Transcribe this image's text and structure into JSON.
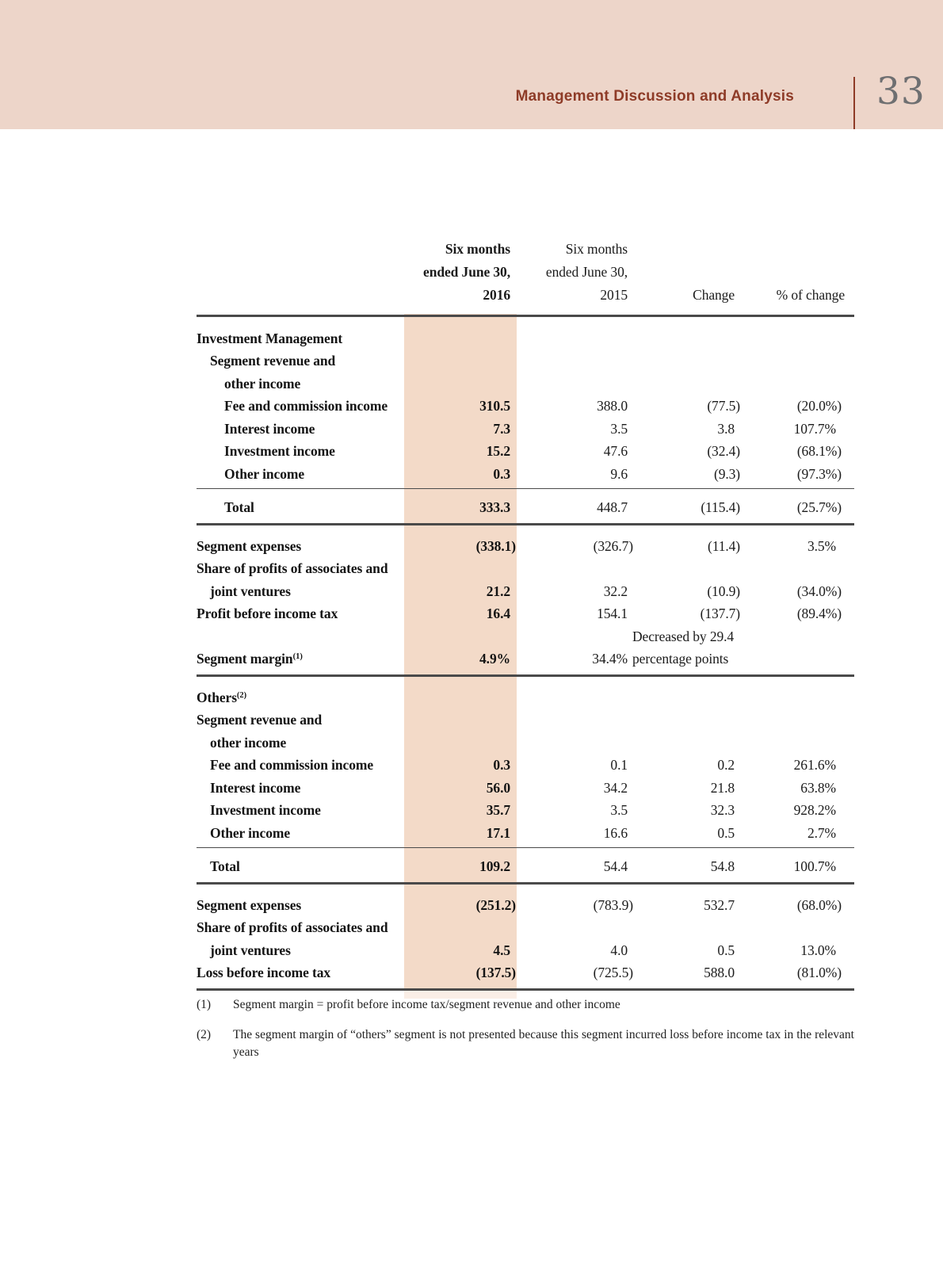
{
  "colors": {
    "band": "#edd5c9",
    "column": "#f3dac8",
    "accent": "#8e3b27",
    "page_number": "#6e6f71",
    "rule": "#4a4a4a"
  },
  "header": {
    "title": "Management Discussion and Analysis",
    "page_number": "33"
  },
  "table": {
    "columns": {
      "c2016_lines": [
        "Six months",
        "ended June 30,",
        "2016"
      ],
      "c2015_lines": [
        "Six months",
        "ended June 30,",
        "2015"
      ],
      "change_label": "Change",
      "pct_label": "% of change"
    },
    "rows": [
      {
        "kind": "label",
        "label": "Investment Management",
        "indent": 0
      },
      {
        "kind": "label",
        "label": "Segment revenue and",
        "indent": 1
      },
      {
        "kind": "label",
        "label": "other income",
        "indent": 2
      },
      {
        "kind": "data",
        "label": "Fee and commission income",
        "indent": 2,
        "v2016": "310.5",
        "v2015": "388.0",
        "change": "(77.5)",
        "pct": "(20.0%)"
      },
      {
        "kind": "data",
        "label": "Interest income",
        "indent": 2,
        "v2016": "7.3",
        "v2015": "3.5",
        "change": "3.8",
        "pct": "107.7%"
      },
      {
        "kind": "data",
        "label": "Investment income",
        "indent": 2,
        "v2016": "15.2",
        "v2015": "47.6",
        "change": "(32.4)",
        "pct": "(68.1%)"
      },
      {
        "kind": "data",
        "label": "Other income",
        "indent": 2,
        "v2016": "0.3",
        "v2015": "9.6",
        "change": "(9.3)",
        "pct": "(97.3%)"
      },
      {
        "kind": "rule",
        "style": "thin"
      },
      {
        "kind": "data",
        "label": "Total",
        "indent": 2,
        "v2016": "333.3",
        "v2015": "448.7",
        "change": "(115.4)",
        "pct": "(25.7%)"
      },
      {
        "kind": "rule",
        "style": "thick"
      },
      {
        "kind": "data",
        "label": "Segment expenses",
        "indent": 0,
        "v2016": "(338.1)",
        "v2015": "(326.7)",
        "change": "(11.4)",
        "pct": "3.5%"
      },
      {
        "kind": "label",
        "label": "Share of profits of associates and",
        "indent": 0
      },
      {
        "kind": "data",
        "label": "joint ventures",
        "indent": 1,
        "v2016": "21.2",
        "v2015": "32.2",
        "change": "(10.9)",
        "pct": "(34.0%)"
      },
      {
        "kind": "data",
        "label": "Profit before income tax",
        "indent": 0,
        "v2016": "16.4",
        "v2015": "154.1",
        "change": "(137.7)",
        "pct": "(89.4%)"
      },
      {
        "kind": "note",
        "change_note": "Decreased by 29.4"
      },
      {
        "kind": "data",
        "label": "Segment margin",
        "sup": "(1)",
        "indent": 0,
        "v2016": "4.9%",
        "v2015": "34.4%",
        "change_note": "percentage points"
      },
      {
        "kind": "rule",
        "style": "thick"
      },
      {
        "kind": "label",
        "label": "Others",
        "sup": "(2)",
        "indent": 0
      },
      {
        "kind": "label",
        "label": "Segment revenue and",
        "indent": 0
      },
      {
        "kind": "label",
        "label": "other income",
        "indent": 1
      },
      {
        "kind": "data",
        "label": "Fee and commission income",
        "indent": 1,
        "v2016": "0.3",
        "v2015": "0.1",
        "change": "0.2",
        "pct": "261.6%"
      },
      {
        "kind": "data",
        "label": "Interest income",
        "indent": 1,
        "v2016": "56.0",
        "v2015": "34.2",
        "change": "21.8",
        "pct": "63.8%"
      },
      {
        "kind": "data",
        "label": "Investment income",
        "indent": 1,
        "v2016": "35.7",
        "v2015": "3.5",
        "change": "32.3",
        "pct": "928.2%"
      },
      {
        "kind": "data",
        "label": "Other income",
        "indent": 1,
        "v2016": "17.1",
        "v2015": "16.6",
        "change": "0.5",
        "pct": "2.7%"
      },
      {
        "kind": "rule",
        "style": "thin"
      },
      {
        "kind": "data",
        "label": "Total",
        "indent": 1,
        "v2016": "109.2",
        "v2015": "54.4",
        "change": "54.8",
        "pct": "100.7%"
      },
      {
        "kind": "rule",
        "style": "thick"
      },
      {
        "kind": "data",
        "label": "Segment expenses",
        "indent": 0,
        "v2016": "(251.2)",
        "v2015": "(783.9)",
        "change": "532.7",
        "pct": "(68.0%)"
      },
      {
        "kind": "label",
        "label": "Share of profits of associates and",
        "indent": 0
      },
      {
        "kind": "data",
        "label": "joint ventures",
        "indent": 1,
        "v2016": "4.5",
        "v2015": "4.0",
        "change": "0.5",
        "pct": "13.0%"
      },
      {
        "kind": "data",
        "label": "Loss before income tax",
        "indent": 0,
        "v2016": "(137.5)",
        "v2015": "(725.5)",
        "change": "588.0",
        "pct": "(81.0%)"
      },
      {
        "kind": "rule",
        "style": "bottom"
      }
    ]
  },
  "footnotes": [
    {
      "marker": "(1)",
      "text": "Segment margin = profit before income tax/segment revenue and other income"
    },
    {
      "marker": "(2)",
      "text": "The segment margin of “others” segment is not presented because this segment incurred loss before income tax in the relevant years"
    }
  ]
}
